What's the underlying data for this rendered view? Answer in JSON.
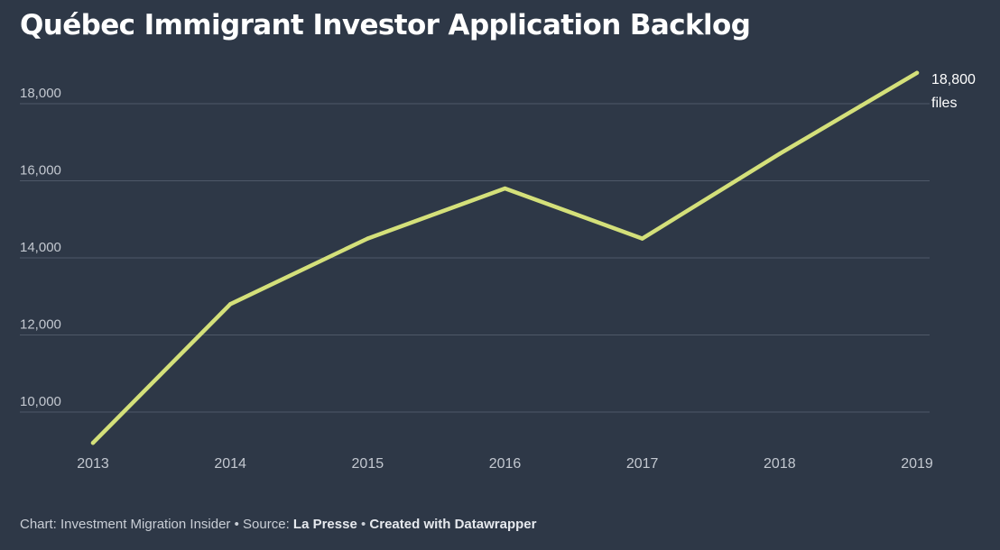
{
  "title": "Québec Immigrant Investor Application Backlog",
  "colors": {
    "background": "#2e3847",
    "line": "#d4e07a",
    "grid": "#4e5868",
    "axis_text": "#c3c8d0",
    "annotation_text": "#ffffff"
  },
  "chart_data": {
    "type": "line",
    "title": "Québec Immigrant Investor Application Backlog",
    "xlabel": "",
    "ylabel": "",
    "x": [
      2013,
      2014,
      2015,
      2016,
      2017,
      2018,
      2019
    ],
    "x_tick_labels": [
      "2013",
      "2014",
      "2015",
      "2016",
      "2017",
      "2018",
      "2019"
    ],
    "series": [
      {
        "values": [
          9200,
          12800,
          14500,
          15800,
          14500,
          16700,
          18800
        ]
      }
    ],
    "y_ticks": [
      10000,
      12000,
      14000,
      16000,
      18000
    ],
    "y_tick_labels": [
      "10,000",
      "12,000",
      "14,000",
      "16,000",
      "18,000"
    ],
    "ylim": [
      9200,
      19000
    ],
    "grid": "horizontal",
    "legend": "none",
    "end_annotation": {
      "line1": "18,800",
      "line2": "files"
    }
  },
  "footer": {
    "chart_prefix": "Chart: Investment Migration Insider",
    "separator": "•",
    "source_prefix": "Source:",
    "source_name": "La Presse",
    "created": "Created with Datawrapper"
  }
}
